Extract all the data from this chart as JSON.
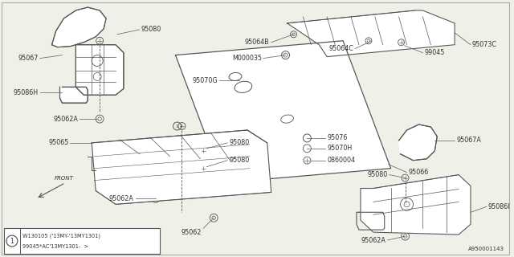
{
  "bg_color": "#f0efe8",
  "line_color": "#555555",
  "text_color": "#333333",
  "diagram_id": "A950001143",
  "font_size": 5.8,
  "note_line1": "W130105 ('13MY-'13MY1301)",
  "note_line2": "99045*AC'13MY1301-  >"
}
